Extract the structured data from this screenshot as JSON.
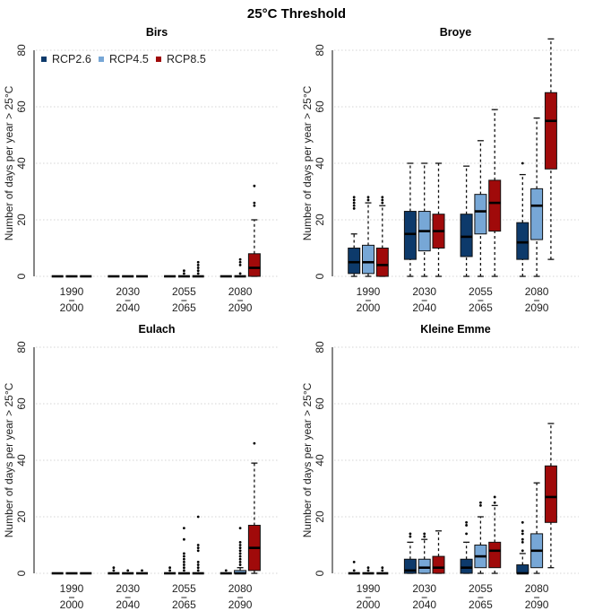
{
  "chart_data": {
    "type": "box",
    "title": "25°C Threshold",
    "ylabel": "Number of days per year > 25°C",
    "ylim": [
      0,
      80
    ],
    "yticks": [
      0,
      20,
      40,
      60,
      80
    ],
    "grid": "horizontal dotted",
    "categories": [
      {
        "top": "1990",
        "mid": "–",
        "bottom": "2000"
      },
      {
        "top": "2030",
        "mid": "–",
        "bottom": "2040"
      },
      {
        "top": "2055",
        "mid": "–",
        "bottom": "2065"
      },
      {
        "top": "2080",
        "mid": "–",
        "bottom": "2090"
      }
    ],
    "legend": {
      "placement": "top-left",
      "entries": [
        {
          "name": "RCP2.6",
          "color": "#0d3a6b"
        },
        {
          "name": "RCP4.5",
          "color": "#77a7d6"
        },
        {
          "name": "RCP8.5",
          "color": "#a00a0a"
        }
      ]
    },
    "panels": [
      {
        "name": "Birs",
        "groups": [
          [
            {
              "min": 0,
              "q1": 0,
              "med": 0,
              "q3": 0,
              "max": 0,
              "out": []
            },
            {
              "min": 0,
              "q1": 0,
              "med": 0,
              "q3": 0,
              "max": 0,
              "out": []
            },
            {
              "min": 0,
              "q1": 0,
              "med": 0,
              "q3": 0,
              "max": 0,
              "out": []
            }
          ],
          [
            {
              "min": 0,
              "q1": 0,
              "med": 0,
              "q3": 0,
              "max": 0,
              "out": []
            },
            {
              "min": 0,
              "q1": 0,
              "med": 0,
              "q3": 0,
              "max": 0,
              "out": []
            },
            {
              "min": 0,
              "q1": 0,
              "med": 0,
              "q3": 0,
              "max": 0,
              "out": []
            }
          ],
          [
            {
              "min": 0,
              "q1": 0,
              "med": 0,
              "q3": 0,
              "max": 0,
              "out": []
            },
            {
              "min": 0,
              "q1": 0,
              "med": 0,
              "q3": 0,
              "max": 0,
              "out": [
                1,
                2
              ]
            },
            {
              "min": 0,
              "q1": 0,
              "med": 0,
              "q3": 0,
              "max": 0,
              "out": [
                1,
                2,
                3,
                4,
                5
              ]
            }
          ],
          [
            {
              "min": 0,
              "q1": 0,
              "med": 0,
              "q3": 0,
              "max": 0,
              "out": []
            },
            {
              "min": 0,
              "q1": 0,
              "med": 0,
              "q3": 0,
              "max": 0,
              "out": [
                1,
                4,
                5,
                6
              ]
            },
            {
              "min": 0,
              "q1": 0,
              "med": 3,
              "q3": 8,
              "max": 20,
              "out": [
                25,
                26,
                32
              ]
            }
          ]
        ]
      },
      {
        "name": "Broye",
        "groups": [
          [
            {
              "min": 0,
              "q1": 1,
              "med": 5,
              "q3": 10,
              "max": 15,
              "out": [
                24,
                25,
                26,
                27,
                28
              ]
            },
            {
              "min": 0,
              "q1": 1,
              "med": 5,
              "q3": 11,
              "max": 26,
              "out": [
                27,
                28
              ]
            },
            {
              "min": 0,
              "q1": 0,
              "med": 4,
              "q3": 10,
              "max": 25,
              "out": [
                26,
                27,
                28
              ]
            }
          ],
          [
            {
              "min": 0,
              "q1": 6,
              "med": 15,
              "q3": 23,
              "max": 40,
              "out": []
            },
            {
              "min": 0,
              "q1": 9,
              "med": 16,
              "q3": 23,
              "max": 40,
              "out": []
            },
            {
              "min": 0,
              "q1": 10,
              "med": 16,
              "q3": 22,
              "max": 40,
              "out": []
            }
          ],
          [
            {
              "min": 0,
              "q1": 7,
              "med": 14,
              "q3": 22,
              "max": 39,
              "out": []
            },
            {
              "min": 0,
              "q1": 15,
              "med": 23,
              "q3": 29,
              "max": 48,
              "out": []
            },
            {
              "min": 0,
              "q1": 16,
              "med": 26,
              "q3": 34,
              "max": 59,
              "out": []
            }
          ],
          [
            {
              "min": 0,
              "q1": 6,
              "med": 12,
              "q3": 19,
              "max": 36,
              "out": [
                40
              ]
            },
            {
              "min": 0,
              "q1": 13,
              "med": 25,
              "q3": 31,
              "max": 56,
              "out": []
            },
            {
              "min": 6,
              "q1": 38,
              "med": 55,
              "q3": 65,
              "max": 84,
              "out": []
            }
          ]
        ]
      },
      {
        "name": "Eulach",
        "groups": [
          [
            {
              "min": 0,
              "q1": 0,
              "med": 0,
              "q3": 0,
              "max": 0,
              "out": []
            },
            {
              "min": 0,
              "q1": 0,
              "med": 0,
              "q3": 0,
              "max": 0,
              "out": []
            },
            {
              "min": 0,
              "q1": 0,
              "med": 0,
              "q3": 0,
              "max": 0,
              "out": []
            }
          ],
          [
            {
              "min": 0,
              "q1": 0,
              "med": 0,
              "q3": 0,
              "max": 0,
              "out": [
                1,
                2
              ]
            },
            {
              "min": 0,
              "q1": 0,
              "med": 0,
              "q3": 0,
              "max": 0,
              "out": [
                1
              ]
            },
            {
              "min": 0,
              "q1": 0,
              "med": 0,
              "q3": 0,
              "max": 0,
              "out": [
                1
              ]
            }
          ],
          [
            {
              "min": 0,
              "q1": 0,
              "med": 0,
              "q3": 0,
              "max": 0,
              "out": [
                1,
                2
              ]
            },
            {
              "min": 0,
              "q1": 0,
              "med": 0,
              "q3": 0,
              "max": 0,
              "out": [
                1,
                2,
                3,
                4,
                5,
                6,
                7,
                12,
                16
              ]
            },
            {
              "min": 0,
              "q1": 0,
              "med": 0,
              "q3": 0,
              "max": 0,
              "out": [
                1,
                2,
                3,
                4,
                8,
                9,
                10,
                20
              ]
            }
          ],
          [
            {
              "min": 0,
              "q1": 0,
              "med": 0,
              "q3": 0,
              "max": 0,
              "out": [
                1
              ]
            },
            {
              "min": 0,
              "q1": 0,
              "med": 0,
              "q3": 1,
              "max": 2,
              "out": [
                3,
                4,
                5,
                6,
                7,
                8,
                9,
                10,
                11,
                16
              ]
            },
            {
              "min": 0,
              "q1": 1,
              "med": 9,
              "q3": 17,
              "max": 39,
              "out": [
                46
              ]
            }
          ]
        ]
      },
      {
        "name": "Kleine Emme",
        "groups": [
          [
            {
              "min": 0,
              "q1": 0,
              "med": 0,
              "q3": 0,
              "max": 0,
              "out": [
                1,
                4
              ]
            },
            {
              "min": 0,
              "q1": 0,
              "med": 0,
              "q3": 0,
              "max": 0,
              "out": [
                1,
                2
              ]
            },
            {
              "min": 0,
              "q1": 0,
              "med": 0,
              "q3": 0,
              "max": 0,
              "out": [
                1,
                2
              ]
            }
          ],
          [
            {
              "min": 0,
              "q1": 0,
              "med": 1,
              "q3": 5,
              "max": 11,
              "out": [
                13,
                14
              ]
            },
            {
              "min": 0,
              "q1": 0,
              "med": 2,
              "q3": 5,
              "max": 12,
              "out": [
                13,
                14
              ]
            },
            {
              "min": 0,
              "q1": 0,
              "med": 2,
              "q3": 6,
              "max": 15,
              "out": []
            }
          ],
          [
            {
              "min": 0,
              "q1": 0,
              "med": 2,
              "q3": 5,
              "max": 11,
              "out": [
                14,
                17,
                18
              ]
            },
            {
              "min": 0,
              "q1": 2,
              "med": 6,
              "q3": 10,
              "max": 20,
              "out": [
                24,
                25
              ]
            },
            {
              "min": 0,
              "q1": 2,
              "med": 8,
              "q3": 11,
              "max": 24,
              "out": [
                25,
                27
              ]
            }
          ],
          [
            {
              "min": 0,
              "q1": 0,
              "med": 0,
              "q3": 3,
              "max": 7,
              "out": [
                8,
                11,
                12,
                14,
                15,
                18
              ]
            },
            {
              "min": 0,
              "q1": 2,
              "med": 8,
              "q3": 14,
              "max": 32,
              "out": []
            },
            {
              "min": 2,
              "q1": 18,
              "med": 27,
              "q3": 38,
              "max": 53,
              "out": []
            }
          ]
        ]
      }
    ]
  }
}
